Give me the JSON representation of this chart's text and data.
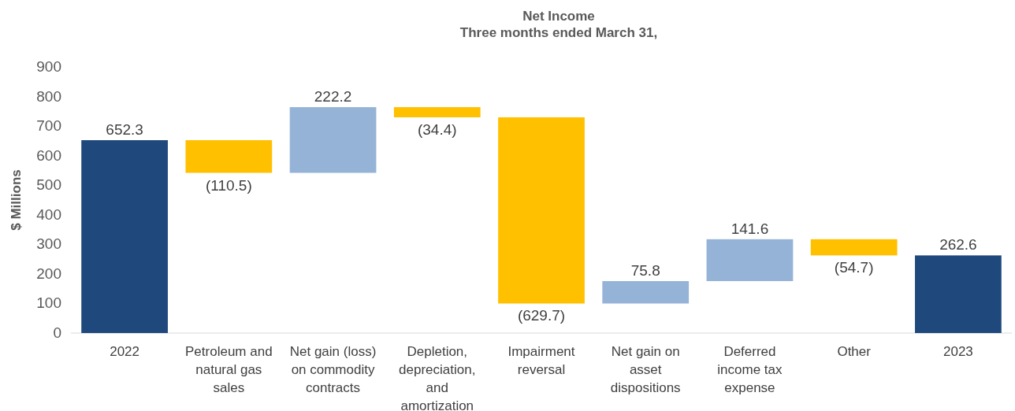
{
  "chart_data": {
    "type": "bar",
    "title": "Net Income",
    "subtitle": "Three months ended March 31,",
    "ylabel": "$ Millions",
    "categories": [
      "2022",
      "Petroleum and natural gas sales",
      "Net gain (loss) on commodity contracts",
      "Depletion, depreciation, and amortization",
      "Impairment reversal",
      "Net gain on asset dispositions",
      "Deferred income tax expense",
      "Other",
      "2023"
    ],
    "values": [
      652.3,
      -110.5,
      222.2,
      -34.4,
      -629.7,
      75.8,
      141.6,
      -54.7,
      262.6
    ],
    "base": [
      0,
      652.3,
      541.8,
      764.0,
      729.6,
      99.9,
      175.7,
      317.3,
      0
    ],
    "colors": [
      "#1f497d",
      "#ffc000",
      "#95b3d7",
      "#ffc000",
      "#ffc000",
      "#95b3d7",
      "#95b3d7",
      "#ffc000",
      "#1f497d"
    ],
    "value_labels": [
      "652.3",
      "(110.5)",
      "222.2",
      "(34.4)",
      "(629.7)",
      "75.8",
      "141.6",
      "(54.7)",
      "262.6"
    ],
    "ylim": [
      0,
      900
    ],
    "yticks": [
      0,
      100,
      200,
      300,
      400,
      500,
      600,
      700,
      800,
      900
    ]
  }
}
